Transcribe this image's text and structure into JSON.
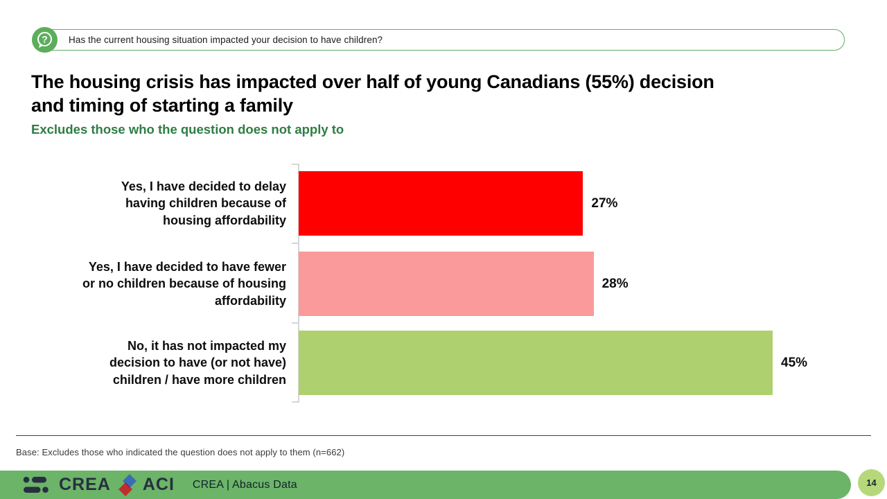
{
  "banner": {
    "question": "Has the current housing situation impacted your decision to have children?",
    "icon": "question-mark-speech-bubble"
  },
  "title": {
    "lines": [
      "The housing crisis has impacted over half of young Canadians (55%) decision",
      "and timing of starting a family"
    ]
  },
  "subtitle": "Excludes those who the question does not apply to",
  "chart_data": {
    "type": "bar",
    "orientation": "horizontal",
    "title": "",
    "xlabel": "",
    "ylabel": "",
    "xlim": [
      0,
      50
    ],
    "grid": false,
    "legend": false,
    "value_label_position": "outside-end",
    "categories": [
      "Yes, I have decided to delay having children because of housing affordability",
      "Yes, I have decided to have fewer or no children because of housing affordability",
      "No, it has not impacted my decision to have (or not have) children / have more children"
    ],
    "values": [
      27,
      28,
      45
    ],
    "value_labels": [
      "27%",
      "28%",
      "45%"
    ],
    "bar_colors": [
      "#fe0000",
      "#fb9a9a",
      "#aed06e"
    ]
  },
  "footnote": "Base: Excludes those who indicated the question does not apply to them (n=662)",
  "footer": {
    "brand_left": "CREA",
    "brand_right": "ACI",
    "source_label": "CREA | Abacus Data",
    "page_number": "14"
  },
  "colors": {
    "banner_green": "#61ae61",
    "icon_green": "#5cad5c",
    "subtitle_green": "#2e7d43",
    "footer_green": "#6cb467",
    "page_badge_green": "#b6d87b",
    "logo_navy": "#272f41",
    "logo_blue": "#3a6db4",
    "logo_red": "#bf2e2e",
    "logo_overlap": "#8f2430",
    "axis_gray": "#d6d6d6"
  }
}
